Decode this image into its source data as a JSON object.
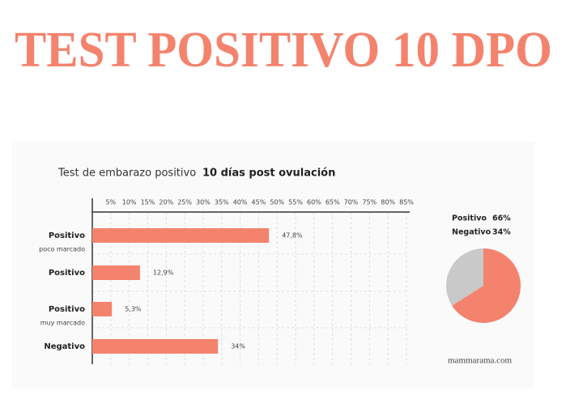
{
  "header": {
    "title": "TEST POSITIVO 10 DPO"
  },
  "chart_data": [
    {
      "type": "bar",
      "orientation": "horizontal",
      "title": "Test de embarazo positivo",
      "subtitle": "10 días post ovulación",
      "categories": [
        "Positivo",
        "Positivo",
        "Positivo",
        "Negativo"
      ],
      "category_notes": [
        "poco marcado",
        null,
        "muy marcado",
        null
      ],
      "values": [
        47.8,
        12.9,
        5.3,
        34
      ],
      "value_labels": [
        "47,8%",
        "12,9%",
        "5,3%",
        "34%"
      ],
      "color": "#f4836d",
      "xlim": [
        0,
        85
      ],
      "xticks": [
        {
          "value": 5,
          "label": "5%"
        },
        {
          "value": 10,
          "label": "10%"
        },
        {
          "value": 15,
          "label": "15%"
        },
        {
          "value": 20,
          "label": "20%"
        },
        {
          "value": 25,
          "label": "25%"
        },
        {
          "value": 30,
          "label": "30%"
        },
        {
          "value": 35,
          "label": "35%"
        },
        {
          "value": 40,
          "label": "40%"
        },
        {
          "value": 45,
          "label": "45%"
        },
        {
          "value": 50,
          "label": "50%"
        },
        {
          "value": 55,
          "label": "55%"
        },
        {
          "value": 60,
          "label": "60%"
        },
        {
          "value": 65,
          "label": "65%"
        },
        {
          "value": 70,
          "label": "70%"
        },
        {
          "value": 75,
          "label": "75%"
        },
        {
          "value": 80,
          "label": "80%"
        },
        {
          "value": 85,
          "label": "85%"
        }
      ],
      "grid": true
    },
    {
      "type": "pie",
      "categories": [
        "Positivo",
        "Negativo"
      ],
      "values": [
        66,
        34
      ],
      "value_labels": [
        "66%",
        "34%"
      ],
      "colors": [
        "#f4836d",
        "#c9c9c9"
      ]
    }
  ],
  "source": "mammarama.com"
}
